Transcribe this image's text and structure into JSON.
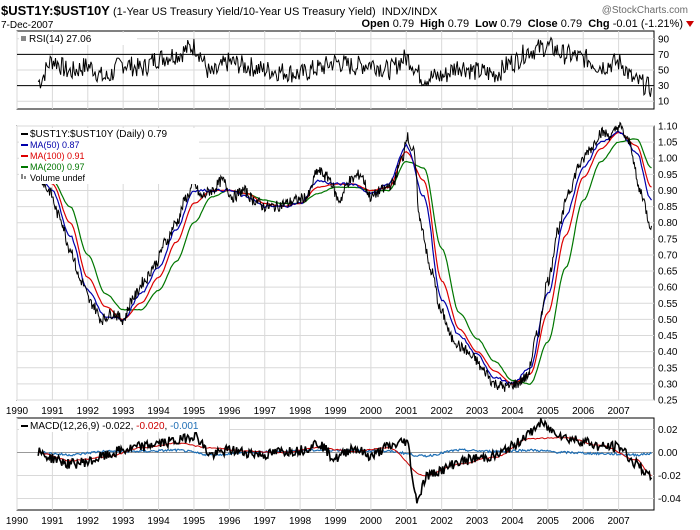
{
  "header": {
    "symbol": "$UST1Y:$UST10Y",
    "description": "(1-Year US Treasury Yield/10-Year US Treasury Yield)",
    "exchange": "INDX/INDX",
    "date": "7-Dec-2007",
    "watermark": "@StockCharts.com",
    "open_label": "Open",
    "open": "0.79",
    "high_label": "High",
    "high": "0.79",
    "low_label": "Low",
    "low": "0.79",
    "close_label": "Close",
    "close": "0.79",
    "chg_label": "Chg",
    "chg": "-0.01 (-1.21%)"
  },
  "colors": {
    "price": "#000000",
    "ma50": "#0000aa",
    "ma100": "#dd0000",
    "ma200": "#007700",
    "macd": "#000000",
    "signal": "#cc0000",
    "histogram": "#1f6fb5",
    "grid": "#d9d9d9",
    "down": "#cc0000"
  },
  "chart_data": [
    {
      "type": "line",
      "panel": "RSI",
      "legend": "RSI(14) 27.06",
      "ylim": [
        0,
        100
      ],
      "y_ticks": [
        10,
        30,
        50,
        70,
        90
      ],
      "reference_lines": [
        30,
        70
      ],
      "series": [
        {
          "name": "RSI(14)",
          "x": [
            1990.6,
            1991.0,
            1991.5,
            1992.0,
            1992.5,
            1993.0,
            1993.5,
            1994.0,
            1994.5,
            1995.0,
            1995.5,
            1996.0,
            1996.5,
            1997.0,
            1997.5,
            1998.0,
            1998.5,
            1999.0,
            1999.5,
            2000.0,
            2000.5,
            2001.0,
            2001.5,
            2002.0,
            2002.5,
            2003.0,
            2003.5,
            2004.0,
            2004.5,
            2005.0,
            2005.5,
            2006.0,
            2006.5,
            2007.0,
            2007.5,
            2007.93
          ],
          "values": [
            35,
            62,
            48,
            55,
            40,
            58,
            52,
            65,
            70,
            80,
            45,
            60,
            55,
            50,
            48,
            45,
            52,
            60,
            55,
            58,
            50,
            65,
            40,
            42,
            55,
            48,
            45,
            60,
            75,
            80,
            70,
            65,
            55,
            60,
            35,
            27.06
          ]
        }
      ]
    },
    {
      "type": "line",
      "panel": "Price",
      "legend": [
        "$UST1Y:$UST10Y (Daily) 0.79",
        "MA(50) 0.87",
        "MA(100) 0.91",
        "MA(200) 0.97",
        "Volume undef"
      ],
      "ylim": [
        0.25,
        1.1
      ],
      "y_ticks": [
        "1.10",
        "1.05",
        "1.00",
        "0.95",
        "0.90",
        "0.85",
        "0.80",
        "0.75",
        "0.70",
        "0.65",
        "0.60",
        "0.55",
        "0.50",
        "0.45",
        "0.40",
        "0.35",
        "0.30",
        "0.25"
      ],
      "xlim": [
        1990.0,
        2008.0
      ],
      "x_ticks": [
        "1990",
        "1991",
        "1992",
        "1993",
        "1994",
        "1995",
        "1996",
        "1997",
        "1998",
        "1999",
        "2000",
        "2001",
        "2002",
        "2003",
        "2004",
        "2005",
        "2006",
        "2007"
      ],
      "series": [
        {
          "name": "$UST1Y:$UST10Y (Daily)",
          "x": [
            1990.6,
            1990.9,
            1991.2,
            1991.5,
            1991.8,
            1992.1,
            1992.4,
            1992.7,
            1993.0,
            1993.3,
            1993.6,
            1993.9,
            1994.2,
            1994.5,
            1994.8,
            1995.0,
            1995.2,
            1995.5,
            1995.8,
            1996.1,
            1996.4,
            1996.7,
            1997.0,
            1997.3,
            1997.6,
            1997.9,
            1998.2,
            1998.5,
            1998.8,
            1999.1,
            1999.4,
            1999.7,
            2000.0,
            2000.3,
            2000.6,
            2000.9,
            2001.0,
            2001.2,
            2001.4,
            2001.7,
            2002.0,
            2002.3,
            2002.6,
            2002.9,
            2003.2,
            2003.5,
            2003.8,
            2004.1,
            2004.4,
            2004.7,
            2005.0,
            2005.3,
            2005.6,
            2005.9,
            2006.2,
            2006.5,
            2006.8,
            2007.0,
            2007.3,
            2007.6,
            2007.93
          ],
          "values": [
            0.95,
            0.9,
            0.82,
            0.72,
            0.62,
            0.55,
            0.5,
            0.52,
            0.5,
            0.57,
            0.62,
            0.67,
            0.74,
            0.8,
            0.88,
            0.92,
            0.88,
            0.9,
            0.93,
            0.88,
            0.9,
            0.87,
            0.85,
            0.85,
            0.86,
            0.87,
            0.88,
            0.96,
            0.94,
            0.87,
            0.93,
            0.95,
            0.88,
            0.9,
            0.92,
            1.0,
            1.07,
            1.02,
            0.8,
            0.65,
            0.52,
            0.44,
            0.41,
            0.38,
            0.34,
            0.3,
            0.29,
            0.3,
            0.32,
            0.45,
            0.62,
            0.78,
            0.9,
            0.98,
            1.03,
            1.08,
            1.07,
            1.1,
            1.05,
            0.9,
            0.79
          ]
        },
        {
          "name": "MA(50)",
          "x": [
            1990.6,
            1991.0,
            1991.5,
            1992.0,
            1992.5,
            1993.0,
            1993.5,
            1994.0,
            1994.5,
            1995.0,
            1995.5,
            1996.0,
            1996.5,
            1997.0,
            1997.5,
            1998.0,
            1998.5,
            1999.0,
            1999.5,
            2000.0,
            2000.5,
            2001.0,
            2001.5,
            2002.0,
            2002.5,
            2003.0,
            2003.5,
            2004.0,
            2004.5,
            2005.0,
            2005.5,
            2006.0,
            2006.5,
            2007.0,
            2007.5,
            2007.93
          ],
          "values": [
            0.95,
            0.9,
            0.76,
            0.59,
            0.51,
            0.5,
            0.58,
            0.66,
            0.78,
            0.9,
            0.9,
            0.9,
            0.88,
            0.85,
            0.85,
            0.86,
            0.93,
            0.92,
            0.92,
            0.89,
            0.92,
            1.04,
            0.88,
            0.56,
            0.45,
            0.39,
            0.32,
            0.3,
            0.35,
            0.58,
            0.82,
            0.97,
            1.05,
            1.08,
            1.02,
            0.87
          ]
        },
        {
          "name": "MA(100)",
          "x": [
            1990.6,
            1991.0,
            1991.5,
            1992.0,
            1992.5,
            1993.0,
            1993.5,
            1994.0,
            1994.5,
            1995.0,
            1995.5,
            1996.0,
            1996.5,
            1997.0,
            1997.5,
            1998.0,
            1998.5,
            1999.0,
            1999.5,
            2000.0,
            2000.5,
            2001.0,
            2001.5,
            2002.0,
            2002.5,
            2003.0,
            2003.5,
            2004.0,
            2004.5,
            2005.0,
            2005.5,
            2006.0,
            2006.5,
            2007.0,
            2007.5,
            2007.93
          ],
          "values": [
            0.95,
            0.92,
            0.8,
            0.63,
            0.54,
            0.5,
            0.55,
            0.63,
            0.74,
            0.86,
            0.9,
            0.9,
            0.89,
            0.86,
            0.85,
            0.86,
            0.91,
            0.92,
            0.92,
            0.9,
            0.91,
            1.02,
            0.93,
            0.62,
            0.47,
            0.4,
            0.34,
            0.3,
            0.33,
            0.52,
            0.76,
            0.94,
            1.03,
            1.08,
            1.04,
            0.91
          ]
        },
        {
          "name": "MA(200)",
          "x": [
            1990.6,
            1991.0,
            1991.5,
            1992.0,
            1992.5,
            1993.0,
            1993.5,
            1994.0,
            1994.5,
            1995.0,
            1995.5,
            1996.0,
            1996.5,
            1997.0,
            1997.5,
            1998.0,
            1998.5,
            1999.0,
            1999.5,
            2000.0,
            2000.5,
            2001.0,
            2001.5,
            2002.0,
            2002.5,
            2003.0,
            2003.5,
            2004.0,
            2004.5,
            2005.0,
            2005.5,
            2006.0,
            2006.5,
            2007.0,
            2007.5,
            2007.93
          ],
          "values": [
            0.95,
            0.93,
            0.85,
            0.7,
            0.58,
            0.53,
            0.53,
            0.59,
            0.68,
            0.8,
            0.88,
            0.9,
            0.89,
            0.87,
            0.86,
            0.86,
            0.89,
            0.91,
            0.91,
            0.9,
            0.9,
            0.99,
            0.97,
            0.72,
            0.52,
            0.44,
            0.37,
            0.31,
            0.3,
            0.43,
            0.66,
            0.87,
            0.99,
            1.05,
            1.06,
            0.97
          ]
        }
      ]
    },
    {
      "type": "line",
      "panel": "MACD",
      "legend": {
        "prefix": "MACD(12,26,9)",
        "macd": "-0.022",
        "signal": "-0.020",
        "hist": "-0.001"
      },
      "ylim": [
        -0.05,
        0.03
      ],
      "y_ticks": [
        "0.02",
        "0.00",
        "-0.02",
        "-0.04"
      ],
      "x_ticks": [
        "1990",
        "1991",
        "1992",
        "1993",
        "1994",
        "1995",
        "1996",
        "1997",
        "1998",
        "1999",
        "2000",
        "2001",
        "2002",
        "2003",
        "2004",
        "2005",
        "2006",
        "2007"
      ],
      "series": [
        {
          "name": "MACD(12,26,9)",
          "x": [
            1990.6,
            1991.0,
            1991.5,
            1992.0,
            1992.5,
            1993.0,
            1993.5,
            1994.0,
            1994.5,
            1995.0,
            1995.5,
            1996.0,
            1996.5,
            1997.0,
            1997.5,
            1998.0,
            1998.5,
            1999.0,
            1999.5,
            2000.0,
            2000.5,
            2001.0,
            2001.3,
            2001.6,
            2002.0,
            2002.5,
            2003.0,
            2003.5,
            2004.0,
            2004.4,
            2004.8,
            2005.2,
            2005.6,
            2006.0,
            2006.5,
            2007.0,
            2007.5,
            2007.93
          ],
          "values": [
            0.0,
            -0.005,
            -0.01,
            -0.008,
            -0.003,
            0.002,
            0.005,
            0.008,
            0.01,
            0.015,
            -0.002,
            0.002,
            0.0,
            -0.002,
            0.001,
            0.002,
            0.008,
            -0.005,
            0.004,
            -0.003,
            0.005,
            0.01,
            -0.04,
            -0.02,
            -0.015,
            -0.008,
            -0.005,
            -0.003,
            0.005,
            0.015,
            0.025,
            0.018,
            0.012,
            0.01,
            0.005,
            0.005,
            -0.01,
            -0.022
          ]
        },
        {
          "name": "Signal",
          "x": [
            1990.6,
            1991.5,
            1992.5,
            1993.5,
            1994.5,
            1995.5,
            1996.5,
            1997.5,
            1998.5,
            1999.5,
            2000.5,
            2001.5,
            2002.5,
            2003.5,
            2004.5,
            2005.5,
            2006.5,
            2007.5,
            2007.93
          ],
          "values": [
            0.0,
            -0.007,
            -0.004,
            0.004,
            0.008,
            0.004,
            0.001,
            0.0,
            0.004,
            0.001,
            0.004,
            -0.02,
            -0.01,
            -0.004,
            0.012,
            0.013,
            0.006,
            -0.006,
            -0.02
          ]
        },
        {
          "name": "Histogram",
          "x": [
            1990.6,
            1991.5,
            1992.5,
            1993.5,
            1994.5,
            1995.5,
            1996.5,
            1997.5,
            1998.5,
            1999.5,
            2000.5,
            2001.5,
            2002.5,
            2003.5,
            2004.5,
            2005.5,
            2006.5,
            2007.5,
            2007.93
          ],
          "values": [
            0.0,
            -0.002,
            0.001,
            0.001,
            0.002,
            -0.002,
            0.0,
            0.001,
            0.002,
            0.002,
            0.001,
            -0.003,
            0.002,
            0.001,
            0.002,
            0.0,
            -0.001,
            -0.002,
            -0.001
          ]
        }
      ]
    }
  ]
}
